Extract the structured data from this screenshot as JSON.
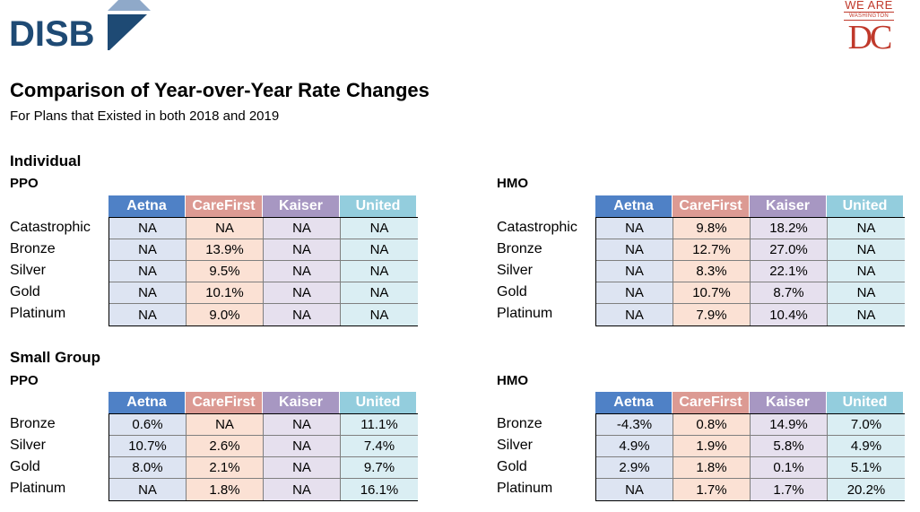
{
  "logos": {
    "disb": "DISB",
    "dc_we_are": "WE ARE",
    "dc_washington": "WASHINGTON",
    "dc_letters": "DC"
  },
  "title": "Comparison of Year-over-Year Rate Changes",
  "subtitle": "For Plans that Existed in both 2018 and 2019",
  "carriers": [
    "Aetna",
    "CareFirst",
    "Kaiser",
    "United"
  ],
  "colors": {
    "aetna_header": "#4f81c6",
    "carefirst_header": "#dc9a93",
    "kaiser_header": "#a797c2",
    "united_header": "#93cddd"
  },
  "individual": {
    "label": "Individual",
    "ppo": {
      "label": "PPO",
      "rows": [
        {
          "tier": "Catastrophic",
          "values": [
            "NA",
            "NA",
            "NA",
            "NA"
          ]
        },
        {
          "tier": "Bronze",
          "values": [
            "NA",
            "13.9%",
            "NA",
            "NA"
          ]
        },
        {
          "tier": "Silver",
          "values": [
            "NA",
            "9.5%",
            "NA",
            "NA"
          ]
        },
        {
          "tier": "Gold",
          "values": [
            "NA",
            "10.1%",
            "NA",
            "NA"
          ]
        },
        {
          "tier": "Platinum",
          "values": [
            "NA",
            "9.0%",
            "NA",
            "NA"
          ]
        }
      ]
    },
    "hmo": {
      "label": "HMO",
      "rows": [
        {
          "tier": "Catastrophic",
          "values": [
            "NA",
            "9.8%",
            "18.2%",
            "NA"
          ]
        },
        {
          "tier": "Bronze",
          "values": [
            "NA",
            "12.7%",
            "27.0%",
            "NA"
          ]
        },
        {
          "tier": "Silver",
          "values": [
            "NA",
            "8.3%",
            "22.1%",
            "NA"
          ]
        },
        {
          "tier": "Gold",
          "values": [
            "NA",
            "10.7%",
            "8.7%",
            "NA"
          ]
        },
        {
          "tier": "Platinum",
          "values": [
            "NA",
            "7.9%",
            "10.4%",
            "NA"
          ]
        }
      ]
    }
  },
  "small_group": {
    "label": "Small Group",
    "ppo": {
      "label": "PPO",
      "rows": [
        {
          "tier": "Bronze",
          "values": [
            "0.6%",
            "NA",
            "NA",
            "11.1%"
          ]
        },
        {
          "tier": "Silver",
          "values": [
            "10.7%",
            "2.6%",
            "NA",
            "7.4%"
          ]
        },
        {
          "tier": "Gold",
          "values": [
            "8.0%",
            "2.1%",
            "NA",
            "9.7%"
          ]
        },
        {
          "tier": "Platinum",
          "values": [
            "NA",
            "1.8%",
            "NA",
            "16.1%"
          ]
        }
      ]
    },
    "hmo": {
      "label": "HMO",
      "rows": [
        {
          "tier": "Bronze",
          "values": [
            "-4.3%",
            "0.8%",
            "14.9%",
            "7.0%"
          ]
        },
        {
          "tier": "Silver",
          "values": [
            "4.9%",
            "1.9%",
            "5.8%",
            "4.9%"
          ]
        },
        {
          "tier": "Gold",
          "values": [
            "2.9%",
            "1.8%",
            "0.1%",
            "5.1%"
          ]
        },
        {
          "tier": "Platinum",
          "values": [
            "NA",
            "1.7%",
            "1.7%",
            "20.2%"
          ]
        }
      ]
    }
  }
}
